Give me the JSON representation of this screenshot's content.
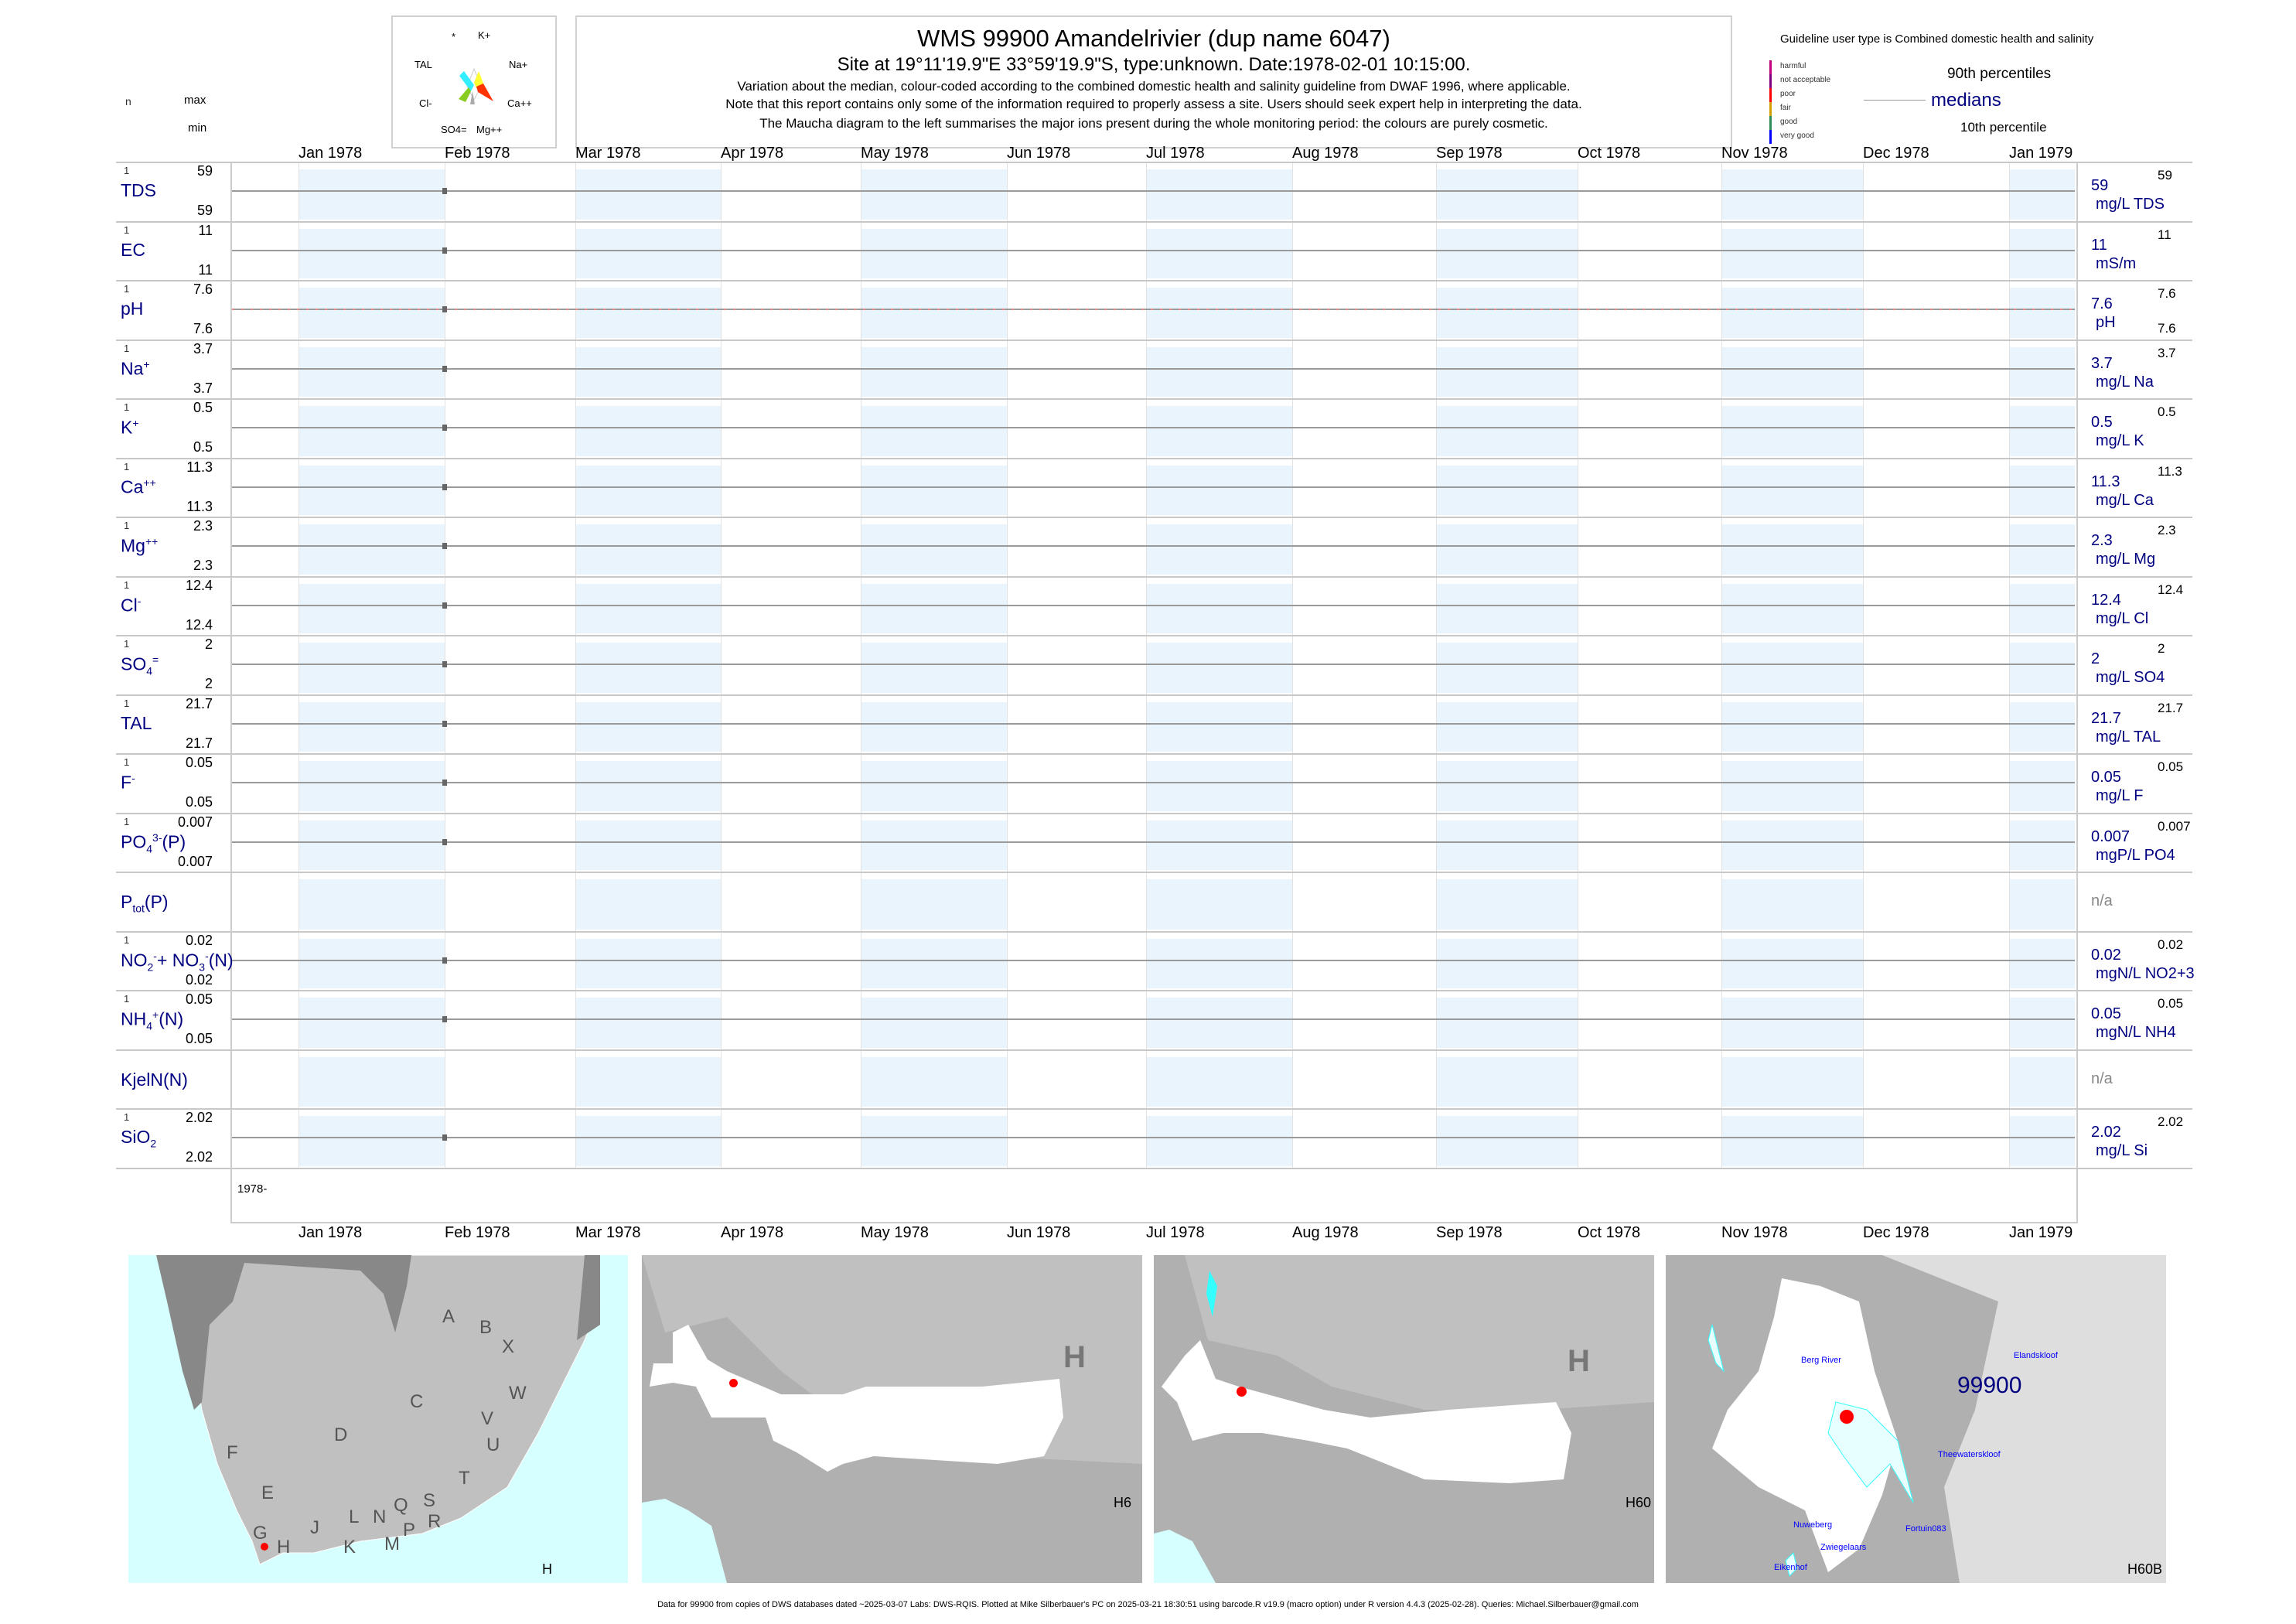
{
  "header": {
    "title": "WMS 99900  Amandelrivier (dup name 6047)",
    "site": "Site at 19°11'19.9\"E 33°59'19.9\"S, type:unknown. Date:1978-02-01 10:15:00.",
    "notes": [
      "Variation about the median,  colour-coded according to the combined domestic health and salinity guideline from DWAF 1996, where applicable.",
      "Note that this report contains only some of the information required to properly assess a site. Users should seek expert help in interpreting the data.",
      "The Maucha diagram to the left summarises the major ions present during the whole monitoring period: the colours are purely cosmetic."
    ]
  },
  "maucha": {
    "labels": [
      "*",
      "K+",
      "TAL",
      "Na+",
      "Cl-",
      "Ca++",
      "SO4=",
      "Mg++"
    ]
  },
  "column_headers": {
    "n": "n",
    "max": "max",
    "min": "min"
  },
  "legend": {
    "guideline": "Guideline user type is Combined domestic health and salinity",
    "classes": [
      {
        "label": "harmful",
        "color": "#c0007a"
      },
      {
        "label": "not acceptable",
        "color": "#800080"
      },
      {
        "label": "poor",
        "color": "#ff0000"
      },
      {
        "label": "fair",
        "color": "#d4a000"
      },
      {
        "label": "good",
        "color": "#2e8b57"
      },
      {
        "label": "very good",
        "color": "#0000ff"
      }
    ],
    "p90": "90th percentiles",
    "medians": "medians",
    "p10": "10th percentile"
  },
  "chart_data": {
    "type": "line",
    "x_axis_ticks": [
      "Jan 1978",
      "Feb 1978",
      "Mar 1978",
      "Apr 1978",
      "May 1978",
      "Jun 1978",
      "Jul 1978",
      "Aug 1978",
      "Sep 1978",
      "Oct 1978",
      "Nov 1978",
      "Dec 1978",
      "Jan 1979"
    ],
    "sample_date": "1978-02-01",
    "year_label": "1978-",
    "series": [
      {
        "name": "TDS",
        "label": [
          [
            "TDS",
            ""
          ]
        ],
        "n": "1",
        "max": "59",
        "min": "59",
        "median": "59",
        "p90": "59",
        "unit": "mg/L TDS"
      },
      {
        "name": "EC",
        "label": [
          [
            "EC",
            ""
          ]
        ],
        "n": "1",
        "max": "11",
        "min": "11",
        "median": "11",
        "p90": "11",
        "unit": "mS/m"
      },
      {
        "name": "pH",
        "label": [
          [
            "pH",
            ""
          ]
        ],
        "n": "1",
        "max": "7.6",
        "min": "7.6",
        "median": "7.6",
        "p90": "7.6",
        "p10": "7.6",
        "unit": "pH"
      },
      {
        "name": "Na",
        "label": [
          [
            "Na",
            ""
          ],
          [
            "+",
            "sup"
          ]
        ],
        "n": "1",
        "max": "3.7",
        "min": "3.7",
        "median": "3.7",
        "p90": "3.7",
        "unit": "mg/L Na"
      },
      {
        "name": "K",
        "label": [
          [
            "K",
            ""
          ],
          [
            "+",
            "sup"
          ]
        ],
        "n": "1",
        "max": "0.5",
        "min": "0.5",
        "median": "0.5",
        "p90": "0.5",
        "unit": "mg/L K"
      },
      {
        "name": "Ca",
        "label": [
          [
            "Ca",
            ""
          ],
          [
            "++",
            "sup"
          ]
        ],
        "n": "1",
        "max": "11.3",
        "min": "11.3",
        "median": "11.3",
        "p90": "11.3",
        "unit": "mg/L Ca"
      },
      {
        "name": "Mg",
        "label": [
          [
            "Mg",
            ""
          ],
          [
            "++",
            "sup"
          ]
        ],
        "n": "1",
        "max": "2.3",
        "min": "2.3",
        "median": "2.3",
        "p90": "2.3",
        "unit": "mg/L Mg"
      },
      {
        "name": "Cl",
        "label": [
          [
            "Cl",
            ""
          ],
          [
            "-",
            "sup"
          ]
        ],
        "n": "1",
        "max": "12.4",
        "min": "12.4",
        "median": "12.4",
        "p90": "12.4",
        "unit": "mg/L Cl"
      },
      {
        "name": "SO4",
        "label": [
          [
            "SO",
            ""
          ],
          [
            "4",
            "sub"
          ],
          [
            "=",
            "sup"
          ]
        ],
        "n": "1",
        "max": "2",
        "min": "2",
        "median": "2",
        "p90": "2",
        "unit": "mg/L SO4"
      },
      {
        "name": "TAL",
        "label": [
          [
            "TAL",
            ""
          ]
        ],
        "n": "1",
        "max": "21.7",
        "min": "21.7",
        "median": "21.7",
        "p90": "21.7",
        "unit": "mg/L TAL"
      },
      {
        "name": "F",
        "label": [
          [
            "F",
            ""
          ],
          [
            "-",
            "sup"
          ]
        ],
        "n": "1",
        "max": "0.05",
        "min": "0.05",
        "median": "0.05",
        "p90": "0.05",
        "unit": "mg/L F"
      },
      {
        "name": "PO4",
        "label": [
          [
            "PO",
            ""
          ],
          [
            "4",
            "sub"
          ],
          [
            "3-",
            "sup"
          ],
          [
            "(P)",
            ""
          ]
        ],
        "n": "1",
        "max": "0.007",
        "min": "0.007",
        "median": "0.007",
        "p90": "0.007",
        "unit": "mgP/L PO4"
      },
      {
        "name": "Ptot",
        "label": [
          [
            "P",
            ""
          ],
          [
            "tot",
            "sub"
          ],
          [
            "(P)",
            ""
          ]
        ],
        "na": "n/a"
      },
      {
        "name": "NO2+NO3",
        "label": [
          [
            "NO",
            ""
          ],
          [
            "2",
            "sub"
          ],
          [
            "-",
            "sup"
          ],
          [
            "+ NO",
            ""
          ],
          [
            "3",
            "sub"
          ],
          [
            "-",
            "sup"
          ],
          [
            "(N)",
            ""
          ]
        ],
        "n": "1",
        "max": "0.02",
        "min": "0.02",
        "median": "0.02",
        "p90": "0.02",
        "unit": "mgN/L NO2+3"
      },
      {
        "name": "NH4",
        "label": [
          [
            "NH",
            ""
          ],
          [
            "4",
            "sub"
          ],
          [
            "+",
            "sup"
          ],
          [
            "(N)",
            ""
          ]
        ],
        "n": "1",
        "max": "0.05",
        "min": "0.05",
        "median": "0.05",
        "p90": "0.05",
        "unit": "mgN/L NH4"
      },
      {
        "name": "KjelN",
        "label": [
          [
            "KjelN(N)",
            ""
          ]
        ],
        "na": "n/a"
      },
      {
        "name": "SiO2",
        "label": [
          [
            "SiO",
            ""
          ],
          [
            "2",
            "sub"
          ]
        ],
        "n": "1",
        "max": "2.02",
        "min": "2.02",
        "median": "2.02",
        "p90": "2.02",
        "unit": "mg/L Si"
      }
    ]
  },
  "maps": [
    {
      "corner_label": "H",
      "regions": [
        "A",
        "B",
        "X",
        "W",
        "C",
        "D",
        "V",
        "U",
        "F",
        "T",
        "E",
        "S",
        "Q",
        "N",
        "L",
        "R",
        "J",
        "G",
        "P",
        "M",
        "K",
        "H"
      ]
    },
    {
      "corner_label": "H6",
      "big_label": "H"
    },
    {
      "corner_label": "H60",
      "big_label": "H"
    },
    {
      "corner_label": "H60B",
      "site": "99900",
      "places": [
        "Berg River",
        "Elandskloof",
        "Theewaterskloof",
        "Nuweberg",
        "Fortuin083",
        "Zwiegelaars",
        "Eikenhof"
      ]
    }
  ],
  "footer": "Data for 99900 from copies of DWS databases dated ~2025-03-07 Labs: DWS-RQIS. Plotted at Mike Silberbauer's PC on 2025-03-21 18:30:51 using barcode.R v19.9 (macro option) under R version 4.4.3 (2025-02-28). Queries: Michael.Silberbauer@gmail.com"
}
